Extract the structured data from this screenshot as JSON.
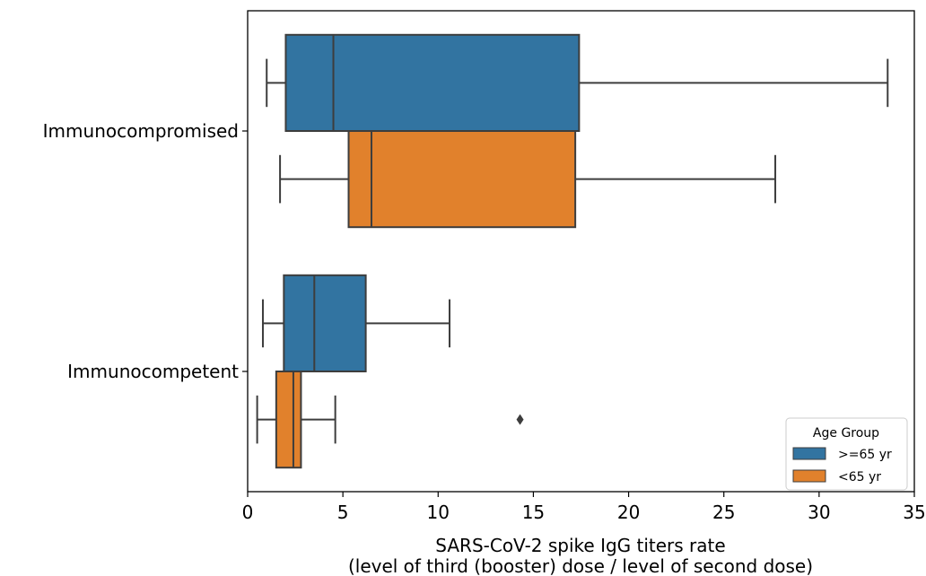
{
  "chart_data": {
    "type": "boxplot",
    "orientation": "horizontal",
    "categories": [
      "Immunocompromised",
      "Immunocompetent"
    ],
    "xlabel_line1": "SARS-CoV-2 spike IgG titers rate",
    "xlabel_line2": "(level of third (booster) dose / level of second dose)",
    "xlim": [
      0,
      35
    ],
    "xticks": [
      0,
      5,
      10,
      15,
      20,
      25,
      30,
      35
    ],
    "legend": {
      "title": "Age Group",
      "position": "bottom-right",
      "entries": [
        {
          "label": ">=65 yr",
          "color": "#3274a1"
        },
        {
          "label": "<65 yr",
          "color": "#e1812c"
        }
      ]
    },
    "series": [
      {
        "name": ">=65 yr",
        "color": "#3274a1",
        "boxes": [
          {
            "category": "Immunocompromised",
            "whisker_low": 1.0,
            "q1": 2.0,
            "median": 4.5,
            "q3": 17.4,
            "whisker_high": 33.6,
            "outliers": []
          },
          {
            "category": "Immunocompetent",
            "whisker_low": 0.8,
            "q1": 1.9,
            "median": 3.5,
            "q3": 6.2,
            "whisker_high": 10.6,
            "outliers": []
          }
        ]
      },
      {
        "name": "<65 yr",
        "color": "#e1812c",
        "boxes": [
          {
            "category": "Immunocompromised",
            "whisker_low": 1.7,
            "q1": 5.3,
            "median": 6.5,
            "q3": 17.2,
            "whisker_high": 27.7,
            "outliers": []
          },
          {
            "category": "Immunocompetent",
            "whisker_low": 0.5,
            "q1": 1.5,
            "median": 2.4,
            "q3": 2.8,
            "whisker_high": 4.6,
            "outliers": [
              14.3
            ]
          }
        ]
      }
    ]
  }
}
